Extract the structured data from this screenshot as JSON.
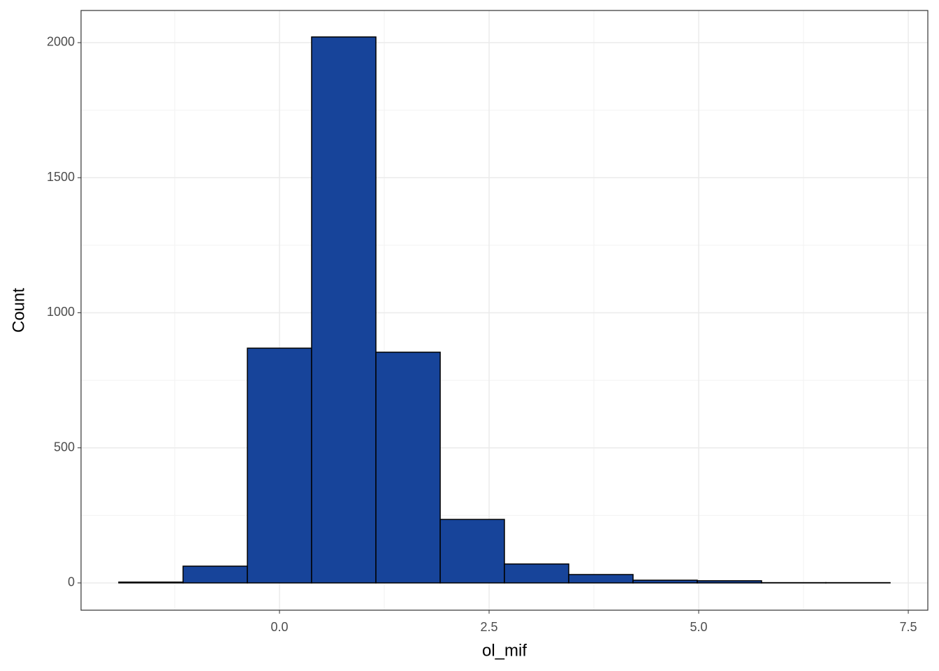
{
  "chart_data": {
    "type": "histogram",
    "x_label": "ol_mif",
    "y_label": "Count",
    "bins": [
      -1.917,
      -1.15,
      -0.383,
      0.383,
      1.15,
      1.917,
      2.683,
      3.45,
      4.217,
      4.983,
      5.75,
      6.517,
      7.283
    ],
    "values": [
      3,
      62,
      869,
      2021,
      854,
      235,
      70,
      31,
      10,
      8,
      1,
      1
    ],
    "color": "#17449a",
    "edge_color": "#000000",
    "xlim": [
      -2.367,
      7.733
    ],
    "ylim": [
      -101,
      2119
    ],
    "xticks": [
      {
        "value": 0,
        "label": "0.0"
      },
      2.5,
      {
        "value": 5,
        "label": "5.0"
      },
      7.5
    ],
    "yticks": [
      0,
      500,
      1000,
      1500,
      2000
    ],
    "grid": true
  }
}
